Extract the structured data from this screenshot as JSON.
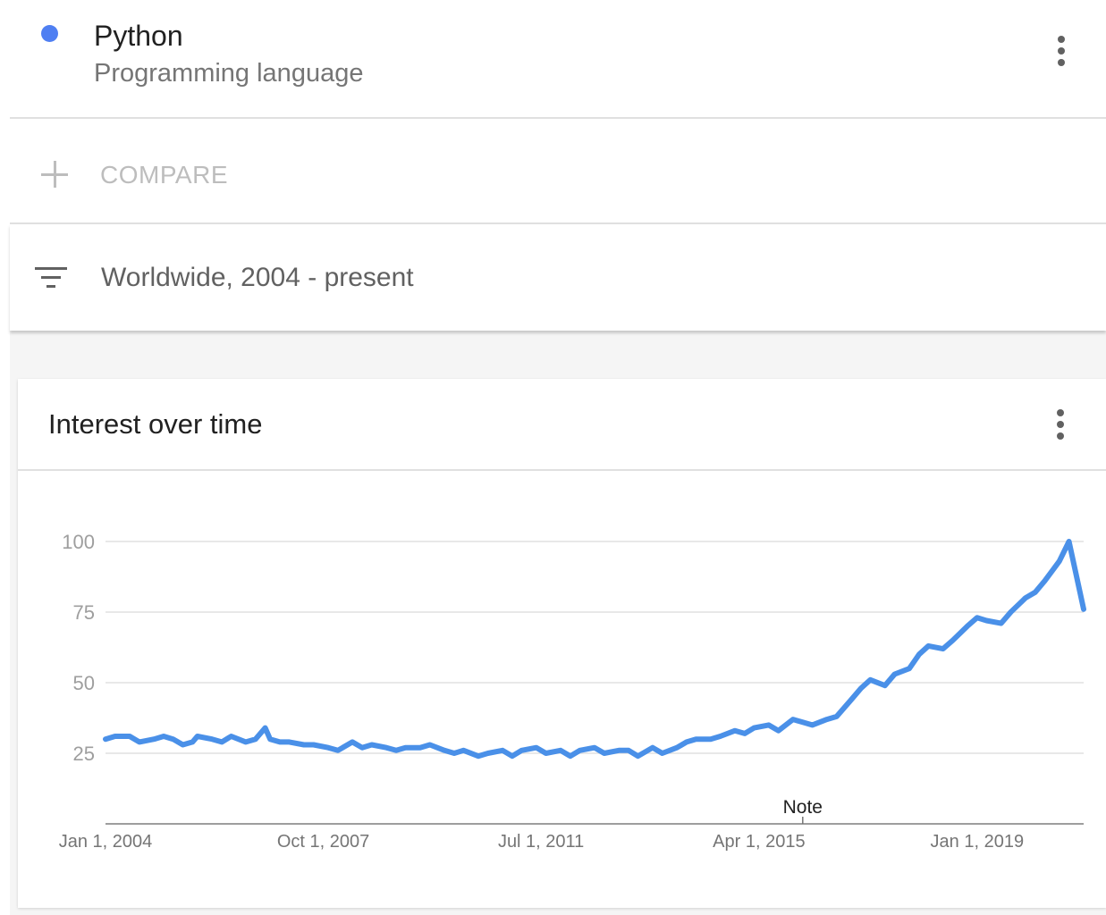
{
  "term": {
    "name": "Python",
    "category": "Programming language",
    "color": "#4f7ff2",
    "menu_icon": "more-vert-icon"
  },
  "compare": {
    "label": "COMPARE",
    "icon": "plus-icon"
  },
  "filter": {
    "label": "Worldwide, 2004 - present",
    "icon": "filter-icon"
  },
  "card": {
    "title": "Interest over time",
    "menu_icon": "more-vert-icon"
  },
  "chart_data": {
    "type": "line",
    "title": "Interest over time",
    "xlabel": "",
    "ylabel": "",
    "ylim": [
      0,
      100
    ],
    "yticks": [
      25,
      50,
      75,
      100
    ],
    "xlim": [
      "2004-01-01",
      "2020-11-01"
    ],
    "xticks": [
      {
        "date": "2004-01-01",
        "label": "Jan 1, 2004"
      },
      {
        "date": "2007-10-01",
        "label": "Oct 1, 2007"
      },
      {
        "date": "2011-07-01",
        "label": "Jul 1, 2011"
      },
      {
        "date": "2015-04-01",
        "label": "Apr 1, 2015"
      },
      {
        "date": "2019-01-01",
        "label": "Jan 1, 2019"
      }
    ],
    "annotations": [
      {
        "date": "2016-01-01",
        "label": "Note"
      }
    ],
    "grid": true,
    "legend": "none",
    "series": [
      {
        "color": "#4a90e8",
        "points": [
          [
            "2004-01-01",
            30
          ],
          [
            "2004-03-01",
            31
          ],
          [
            "2004-06-01",
            31
          ],
          [
            "2004-08-01",
            29
          ],
          [
            "2004-11-01",
            30
          ],
          [
            "2005-01-01",
            31
          ],
          [
            "2005-03-01",
            30
          ],
          [
            "2005-05-01",
            28
          ],
          [
            "2005-07-01",
            29
          ],
          [
            "2005-08-01",
            31
          ],
          [
            "2005-11-01",
            30
          ],
          [
            "2006-01-01",
            29
          ],
          [
            "2006-03-01",
            31
          ],
          [
            "2006-06-01",
            29
          ],
          [
            "2006-08-01",
            30
          ],
          [
            "2006-10-01",
            34
          ],
          [
            "2006-11-01",
            30
          ],
          [
            "2007-01-01",
            29
          ],
          [
            "2007-03-01",
            29
          ],
          [
            "2007-06-01",
            28
          ],
          [
            "2007-08-01",
            28
          ],
          [
            "2007-11-01",
            27
          ],
          [
            "2008-01-01",
            26
          ],
          [
            "2008-04-01",
            29
          ],
          [
            "2008-06-01",
            27
          ],
          [
            "2008-08-01",
            28
          ],
          [
            "2008-11-01",
            27
          ],
          [
            "2009-01-01",
            26
          ],
          [
            "2009-03-01",
            27
          ],
          [
            "2009-06-01",
            27
          ],
          [
            "2009-08-01",
            28
          ],
          [
            "2009-11-01",
            26
          ],
          [
            "2010-01-01",
            25
          ],
          [
            "2010-03-01",
            26
          ],
          [
            "2010-06-01",
            24
          ],
          [
            "2010-08-01",
            25
          ],
          [
            "2010-11-01",
            26
          ],
          [
            "2011-01-01",
            24
          ],
          [
            "2011-03-01",
            26
          ],
          [
            "2011-06-01",
            27
          ],
          [
            "2011-08-01",
            25
          ],
          [
            "2011-11-01",
            26
          ],
          [
            "2012-01-01",
            24
          ],
          [
            "2012-03-01",
            26
          ],
          [
            "2012-06-01",
            27
          ],
          [
            "2012-08-01",
            25
          ],
          [
            "2012-11-01",
            26
          ],
          [
            "2013-01-01",
            26
          ],
          [
            "2013-03-01",
            24
          ],
          [
            "2013-06-01",
            27
          ],
          [
            "2013-08-01",
            25
          ],
          [
            "2013-11-01",
            27
          ],
          [
            "2014-01-01",
            29
          ],
          [
            "2014-03-01",
            30
          ],
          [
            "2014-06-01",
            30
          ],
          [
            "2014-08-01",
            31
          ],
          [
            "2014-11-01",
            33
          ],
          [
            "2015-01-01",
            32
          ],
          [
            "2015-03-01",
            34
          ],
          [
            "2015-06-01",
            35
          ],
          [
            "2015-08-01",
            33
          ],
          [
            "2015-11-01",
            37
          ],
          [
            "2016-01-01",
            36
          ],
          [
            "2016-03-01",
            35
          ],
          [
            "2016-06-01",
            37
          ],
          [
            "2016-08-01",
            38
          ],
          [
            "2016-11-01",
            44
          ],
          [
            "2017-01-01",
            48
          ],
          [
            "2017-03-01",
            51
          ],
          [
            "2017-06-01",
            49
          ],
          [
            "2017-08-01",
            53
          ],
          [
            "2017-11-01",
            55
          ],
          [
            "2018-01-01",
            60
          ],
          [
            "2018-03-01",
            63
          ],
          [
            "2018-06-01",
            62
          ],
          [
            "2018-08-01",
            65
          ],
          [
            "2018-11-01",
            70
          ],
          [
            "2019-01-01",
            73
          ],
          [
            "2019-03-01",
            72
          ],
          [
            "2019-06-01",
            71
          ],
          [
            "2019-08-01",
            75
          ],
          [
            "2019-11-01",
            80
          ],
          [
            "2020-01-01",
            82
          ],
          [
            "2020-03-01",
            86
          ],
          [
            "2020-06-01",
            93
          ],
          [
            "2020-08-01",
            100
          ],
          [
            "2020-11-01",
            76
          ]
        ]
      }
    ]
  }
}
